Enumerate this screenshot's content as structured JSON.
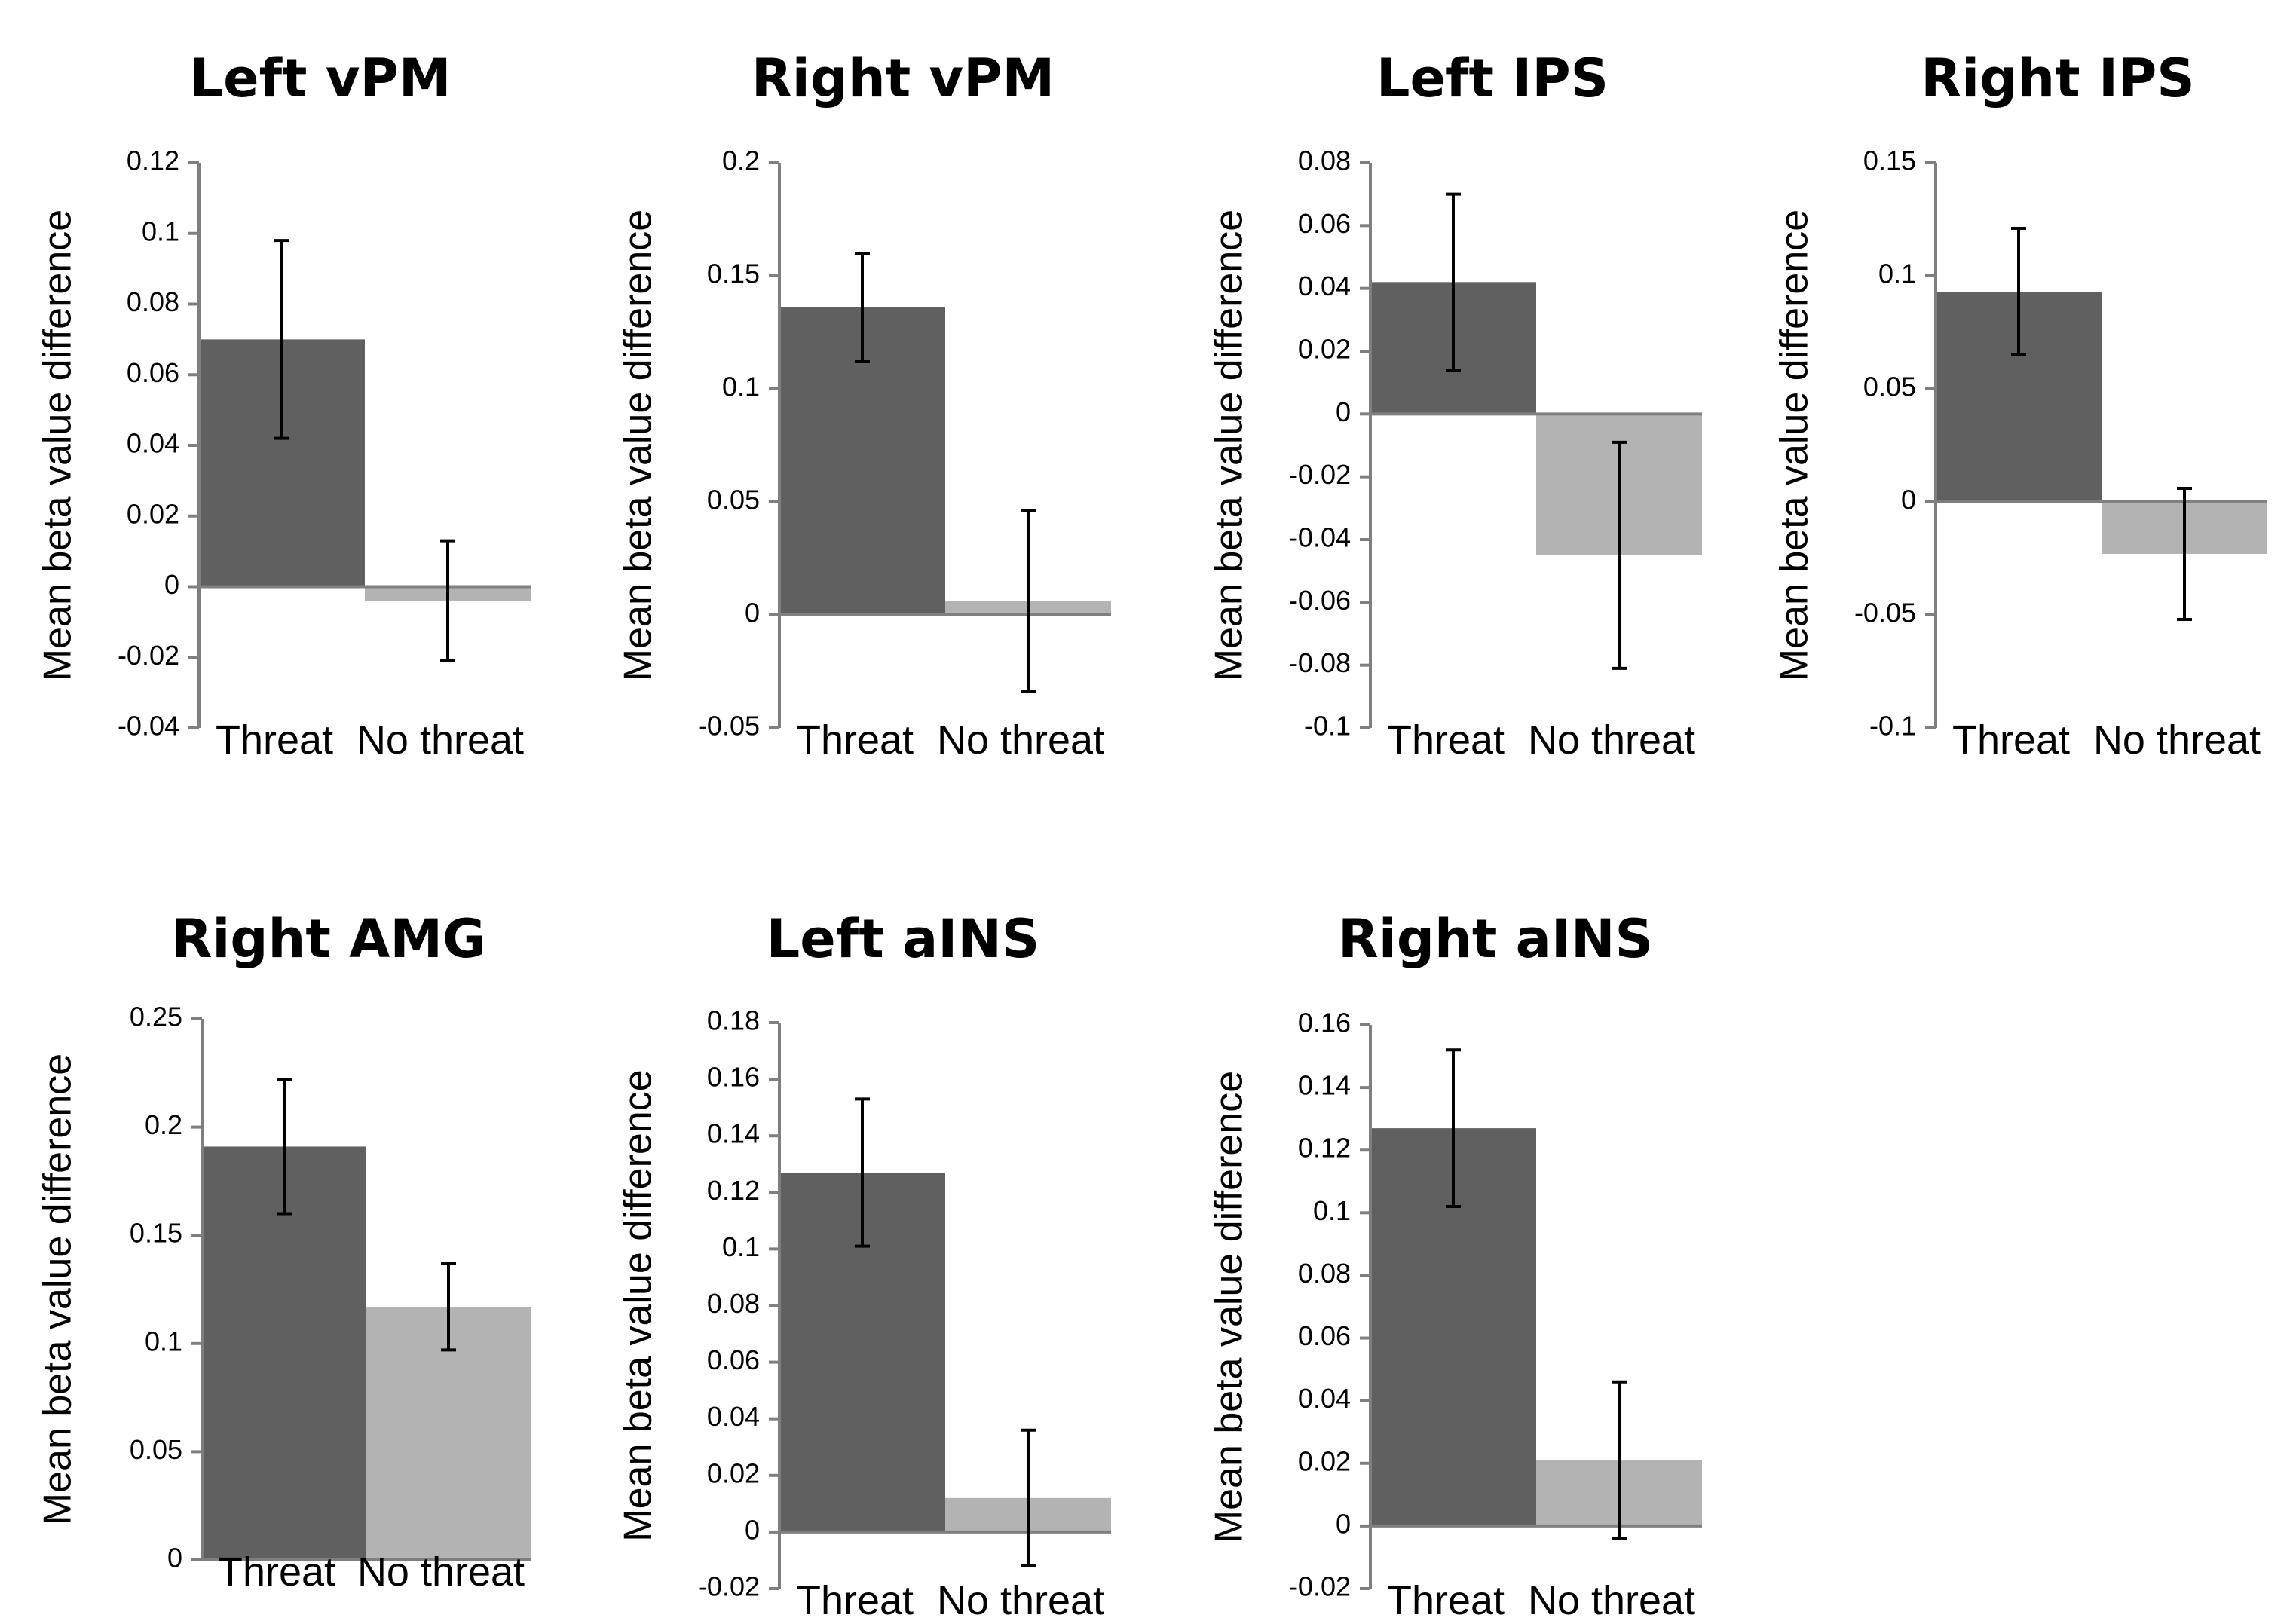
{
  "colors": {
    "threat": "#606060",
    "no_threat": "#b3b3b3"
  },
  "chart_data": [
    {
      "type": "bar",
      "title": "Left vPM",
      "ylabel": "Mean beta value difference",
      "categories": [
        "Threat",
        "No threat"
      ],
      "values": [
        0.07,
        -0.004
      ],
      "errors": [
        0.028,
        0.017
      ],
      "ylim": [
        -0.04,
        0.12
      ],
      "ticks": [
        "0.12",
        "0.1",
        "0.08",
        "0.06",
        "0.04",
        "0.02",
        "0",
        "-0.02",
        "-0.04"
      ]
    },
    {
      "type": "bar",
      "title": "Right vPM",
      "ylabel": "Mean beta value difference",
      "categories": [
        "Threat",
        "No threat"
      ],
      "values": [
        0.136,
        0.006
      ],
      "errors": [
        0.024,
        0.04
      ],
      "ylim": [
        -0.05,
        0.2
      ],
      "ticks": [
        "0.2",
        "0.15",
        "0.1",
        "0.05",
        "0",
        "-0.05"
      ]
    },
    {
      "type": "bar",
      "title": "Left IPS",
      "ylabel": "Mean beta value difference",
      "categories": [
        "Threat",
        "No threat"
      ],
      "values": [
        0.042,
        -0.045
      ],
      "errors": [
        0.028,
        0.036
      ],
      "ylim": [
        -0.1,
        0.08
      ],
      "ticks": [
        "0.08",
        "0.06",
        "0.04",
        "0.02",
        "0",
        "-0.02",
        "-0.04",
        "-0.06",
        "-0.08",
        "-0.1"
      ]
    },
    {
      "type": "bar",
      "title": "Right IPS",
      "ylabel": "Mean beta value difference",
      "categories": [
        "Threat",
        "No threat"
      ],
      "values": [
        0.093,
        -0.023
      ],
      "errors": [
        0.028,
        0.029
      ],
      "ylim": [
        -0.1,
        0.15
      ],
      "ticks": [
        "0.15",
        "0.1",
        "0.05",
        "0",
        "-0.05",
        "-0.1"
      ]
    },
    {
      "type": "bar",
      "title": "Right AMG",
      "ylabel": "Mean beta value difference",
      "categories": [
        "Threat",
        "No threat"
      ],
      "values": [
        0.191,
        0.117
      ],
      "errors": [
        0.031,
        0.02
      ],
      "ylim": [
        0,
        0.25
      ],
      "ticks": [
        "0.25",
        "0.2",
        "0.15",
        "0.1",
        "0.05",
        "0"
      ]
    },
    {
      "type": "bar",
      "title": "Left aINS",
      "ylabel": "Mean beta value difference",
      "categories": [
        "Threat",
        "No threat"
      ],
      "values": [
        0.127,
        0.012
      ],
      "errors": [
        0.026,
        0.024
      ],
      "ylim": [
        -0.02,
        0.18
      ],
      "ticks": [
        "0.18",
        "0.16",
        "0.14",
        "0.12",
        "0.1",
        "0.08",
        "0.06",
        "0.04",
        "0.02",
        "0",
        "-0.02"
      ]
    },
    {
      "type": "bar",
      "title": "Right aINS",
      "ylabel": "Mean beta value difference",
      "categories": [
        "Threat",
        "No threat"
      ],
      "values": [
        0.127,
        0.021
      ],
      "errors": [
        0.025,
        0.025
      ],
      "ylim": [
        -0.02,
        0.16
      ],
      "ticks": [
        "0.16",
        "0.14",
        "0.12",
        "0.1",
        "0.08",
        "0.06",
        "0.04",
        "0.02",
        "0",
        "-0.02"
      ]
    }
  ]
}
